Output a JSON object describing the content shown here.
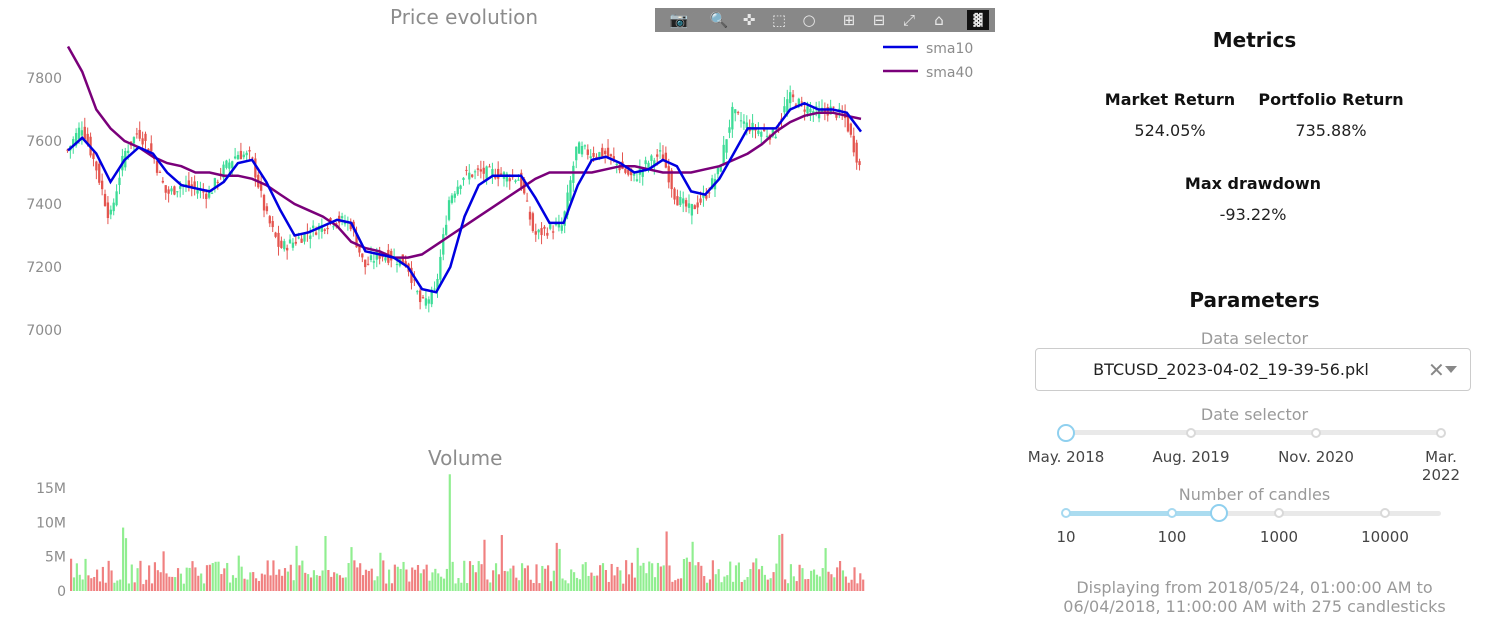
{
  "price_chart": {
    "title": "Price evolution",
    "y_ticks": [
      "7800",
      "7600",
      "7400",
      "7200",
      "7000"
    ],
    "legend": [
      {
        "name": "sma10",
        "color": "#0000e0"
      },
      {
        "name": "sma40",
        "color": "#7a007a"
      }
    ],
    "colors": {
      "up": "#3ddc97",
      "down": "#e4554f"
    }
  },
  "volume_chart": {
    "title": "Volume",
    "y_ticks": [
      "15M",
      "10M",
      "5M",
      "0"
    ],
    "colors": {
      "up": "#90ee90",
      "down": "#f08080"
    }
  },
  "modebar": {
    "icons": [
      "camera-icon",
      "zoom-icon",
      "pan-icon",
      "box-select-icon",
      "lasso-icon",
      "zoom-in-icon",
      "zoom-out-icon",
      "autoscale-icon",
      "reset-axes-icon",
      "plotly-logo-icon"
    ]
  },
  "chart_data": [
    {
      "type": "candlestick",
      "title": "Price evolution",
      "ylim": [
        6900,
        7950
      ],
      "y_ticks": [
        7000,
        7200,
        7400,
        7600,
        7800
      ],
      "candle_count": 275,
      "series": [
        {
          "name": "sma10",
          "values": [
            7570,
            7610,
            7560,
            7470,
            7540,
            7580,
            7560,
            7500,
            7460,
            7450,
            7440,
            7470,
            7530,
            7540,
            7470,
            7380,
            7300,
            7310,
            7330,
            7350,
            7340,
            7250,
            7240,
            7230,
            7200,
            7130,
            7120,
            7200,
            7360,
            7460,
            7490,
            7490,
            7490,
            7420,
            7340,
            7340,
            7460,
            7540,
            7550,
            7530,
            7500,
            7510,
            7540,
            7520,
            7440,
            7430,
            7480,
            7560,
            7640,
            7640,
            7640,
            7700,
            7720,
            7700,
            7700,
            7690,
            7630
          ]
        },
        {
          "name": "sma40",
          "values": [
            7900,
            7820,
            7700,
            7640,
            7600,
            7580,
            7550,
            7530,
            7520,
            7500,
            7500,
            7490,
            7490,
            7480,
            7460,
            7430,
            7400,
            7380,
            7360,
            7330,
            7280,
            7260,
            7250,
            7230,
            7230,
            7240,
            7270,
            7300,
            7330,
            7360,
            7390,
            7420,
            7450,
            7480,
            7500,
            7500,
            7500,
            7500,
            7510,
            7520,
            7520,
            7510,
            7500,
            7500,
            7500,
            7510,
            7520,
            7540,
            7560,
            7590,
            7630,
            7660,
            7680,
            7690,
            7690,
            7680,
            7670
          ]
        }
      ],
      "close_path": [
        7570,
        7650,
        7520,
        7350,
        7560,
        7630,
        7560,
        7430,
        7460,
        7450,
        7430,
        7510,
        7560,
        7550,
        7370,
        7260,
        7280,
        7310,
        7330,
        7350,
        7340,
        7200,
        7240,
        7230,
        7210,
        7080,
        7120,
        7420,
        7490,
        7500,
        7500,
        7490,
        7480,
        7300,
        7320,
        7330,
        7580,
        7560,
        7560,
        7520,
        7480,
        7530,
        7560,
        7420,
        7380,
        7420,
        7500,
        7690,
        7650,
        7630,
        7620,
        7740,
        7710,
        7690,
        7700,
        7670,
        7520
      ]
    },
    {
      "type": "bar",
      "title": "Volume",
      "ylim": [
        0,
        17000000
      ],
      "y_ticks": [
        0,
        5000000,
        10000000,
        15000000
      ],
      "notable_values": {
        "max": 17000000
      }
    }
  ],
  "metrics": {
    "title": "Metrics",
    "market_return_label": "Market Return",
    "market_return_value": "524.05%",
    "portfolio_return_label": "Portfolio Return",
    "portfolio_return_value": "735.88%",
    "max_drawdown_label": "Max drawdown",
    "max_drawdown_value": "-93.22%"
  },
  "parameters": {
    "title": "Parameters",
    "data_selector_label": "Data selector",
    "data_selector_value": "BTCUSD_2023-04-02_19-39-56.pkl",
    "date_selector_label": "Date selector",
    "date_marks": [
      "May. 2018",
      "Aug. 2019",
      "Nov. 2020",
      "Mar.\n2022"
    ],
    "date_value": "May. 2018",
    "candles_label": "Number of candles",
    "candles_marks": [
      "10",
      "100",
      "1000",
      "10000"
    ],
    "candles_value": 275
  },
  "status": {
    "line1": "Displaying from 2018/05/24, 01:00:00 AM to",
    "line2": "06/04/2018, 11:00:00 AM with 275 candlesticks"
  }
}
